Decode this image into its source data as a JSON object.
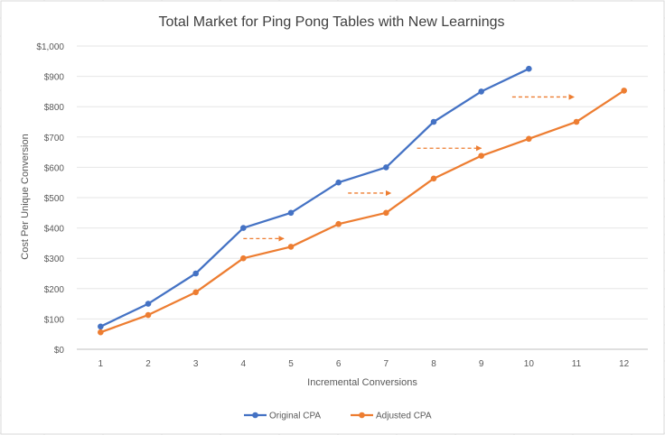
{
  "chart_data": {
    "type": "line",
    "title": "Total Market for Ping Pong Tables with New Learnings",
    "xlabel": "Incremental Conversions",
    "ylabel": "Cost Per Unique Conversion",
    "categories": [
      "1",
      "2",
      "3",
      "4",
      "5",
      "6",
      "7",
      "8",
      "9",
      "10",
      "11",
      "12"
    ],
    "y_tick_labels": [
      "$0",
      "$100",
      "$200",
      "$300",
      "$400",
      "$500",
      "$600",
      "$700",
      "$800",
      "$900",
      "$1,000"
    ],
    "ylim": [
      0,
      1000
    ],
    "grid": true,
    "legend_position": "bottom",
    "series": [
      {
        "name": "Original CPA",
        "color": "#4472C4",
        "x": [
          1,
          2,
          3,
          4,
          5,
          6,
          7,
          8,
          9,
          10
        ],
        "values": [
          75,
          150,
          250,
          400,
          450,
          550,
          600,
          750,
          850,
          925
        ]
      },
      {
        "name": "Adjusted CPA",
        "color": "#ED7D31",
        "x": [
          1,
          2,
          3,
          4,
          5,
          6,
          7,
          8,
          9,
          10,
          11,
          12
        ],
        "values": [
          56,
          113,
          188,
          300,
          338,
          413,
          450,
          563,
          638,
          694,
          750,
          853
        ]
      }
    ],
    "annotations": [
      {
        "type": "dashed-arrow",
        "color": "#ED7D31",
        "x_from": 4,
        "x_to": 4.85,
        "y": 365
      },
      {
        "type": "dashed-arrow",
        "color": "#ED7D31",
        "x_from": 6.2,
        "x_to": 7.1,
        "y": 515
      },
      {
        "type": "dashed-arrow",
        "color": "#ED7D31",
        "x_from": 7.65,
        "x_to": 9,
        "y": 663
      },
      {
        "type": "dashed-arrow",
        "color": "#ED7D31",
        "x_from": 9.65,
        "x_to": 10.95,
        "y": 832
      }
    ]
  }
}
